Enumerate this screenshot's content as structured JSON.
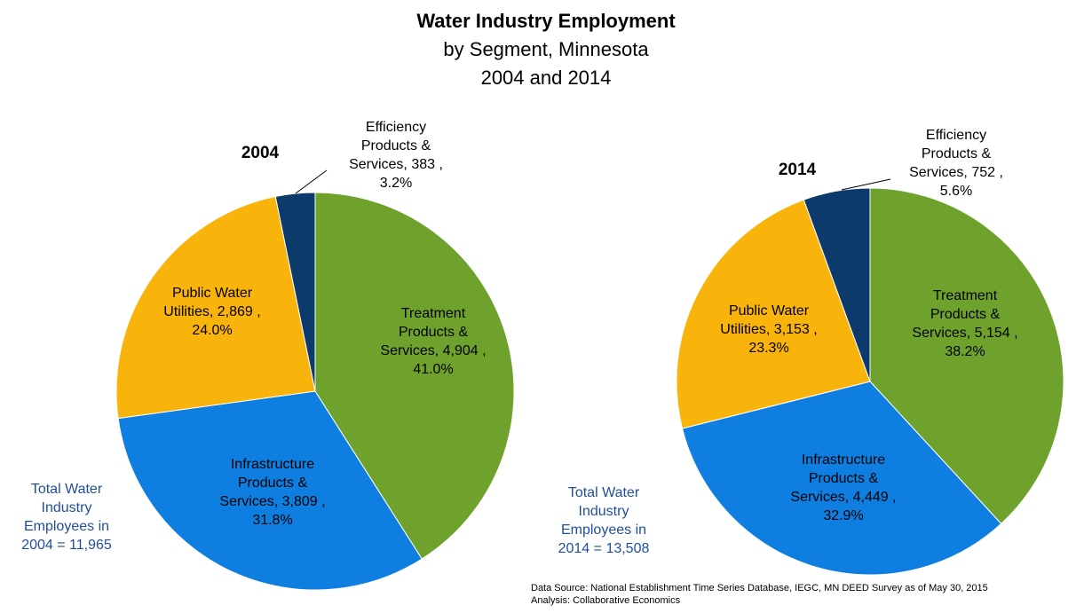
{
  "title": "Water Industry Employment",
  "subtitle_line1": "by Segment, Minnesota",
  "subtitle_line2": "2004 and 2014",
  "source_line1": "Data Source: National Establishment Time Series Database, IEGC, MN DEED Survey as of May 30, 2015",
  "source_line2": "Analysis: Collaborative Economics",
  "colors": {
    "Treatment Products & Services": "#6ea22d",
    "Infrastructure Products & Services": "#0e7fe0",
    "Public Water Utilities": "#f9b40b",
    "Efficiency Products & Services": "#0c3a6b",
    "total_text": "#1f4e9a"
  },
  "chart_data": [
    {
      "type": "pie",
      "title": "2004",
      "categories": [
        "Treatment Products & Services",
        "Infrastructure Products & Services",
        "Public Water Utilities",
        "Efficiency Products & Services"
      ],
      "values": [
        4904,
        3809,
        2869,
        383
      ],
      "percents": [
        "41.0%",
        "31.8%",
        "24.0%",
        "3.2%"
      ],
      "labels": [
        [
          "Treatment",
          "Products &",
          "Services, 4,904 ,",
          "41.0%"
        ],
        [
          "Infrastructure",
          "Products &",
          "Services, 3,809 ,",
          "31.8%"
        ],
        [
          "Public Water",
          "Utilities, 2,869 ,",
          "24.0%"
        ],
        [
          "Efficiency",
          "Products &",
          "Services, 383 ,",
          "3.2%"
        ]
      ],
      "total_text": [
        "Total Water",
        "Industry",
        "Employees in",
        "2004 = 11,965"
      ]
    },
    {
      "type": "pie",
      "title": "2014",
      "categories": [
        "Treatment Products & Services",
        "Infrastructure Products & Services",
        "Public Water Utilities",
        "Efficiency Products & Services"
      ],
      "values": [
        5154,
        4449,
        3153,
        752
      ],
      "percents": [
        "38.2%",
        "32.9%",
        "23.3%",
        "5.6%"
      ],
      "labels": [
        [
          "Treatment",
          "Products &",
          "Services, 5,154 ,",
          "38.2%"
        ],
        [
          "Infrastructure",
          "Products &",
          "Services, 4,449 ,",
          "32.9%"
        ],
        [
          "Public Water",
          "Utilities, 3,153 ,",
          "23.3%"
        ],
        [
          "Efficiency",
          "Products &",
          "Services, 752 ,",
          "5.6%"
        ]
      ],
      "total_text": [
        "Total Water",
        "Industry",
        "Employees in",
        "2014 = 13,508"
      ]
    }
  ]
}
